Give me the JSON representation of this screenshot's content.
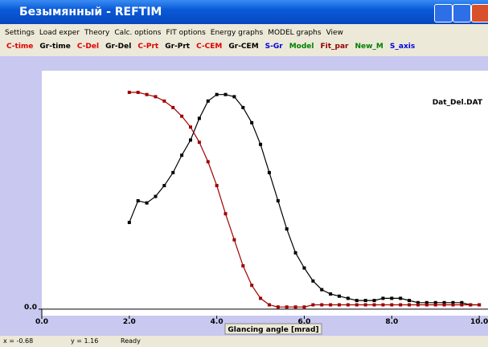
{
  "window": {
    "title": "Безымянный - REFTIM"
  },
  "menu": [
    "Settings",
    "Load exper",
    "Theory",
    "Calc. options",
    "FIT options",
    "Energy graphs",
    "MODEL graphs",
    "View"
  ],
  "toolbar": [
    {
      "label": "C-time",
      "color": "#e00000"
    },
    {
      "label": "Gr-time",
      "color": "#000000"
    },
    {
      "label": "C-Del",
      "color": "#e00000"
    },
    {
      "label": "Gr-Del",
      "color": "#000000"
    },
    {
      "label": "C-Prt",
      "color": "#e00000"
    },
    {
      "label": "Gr-Prt",
      "color": "#000000"
    },
    {
      "label": "C-CEM",
      "color": "#e00000"
    },
    {
      "label": "Gr-CEM",
      "color": "#000000"
    },
    {
      "label": "S-Gr",
      "color": "#0000e0"
    },
    {
      "label": "Model",
      "color": "#008000"
    },
    {
      "label": "Fit_par",
      "color": "#900000"
    },
    {
      "label": "New_M",
      "color": "#008000"
    },
    {
      "label": "S_axis",
      "color": "#0000e0"
    }
  ],
  "status": [
    "x = -0.68",
    "y = 1.16",
    "Ready"
  ],
  "chart_data": {
    "type": "line",
    "annotation": "Dat_Del.DAT",
    "x_label": "Glancing angle [mrad]",
    "x": [
      2.0,
      2.2,
      2.4,
      2.6,
      2.8,
      3.0,
      3.2,
      3.4,
      3.6,
      3.8,
      4.0,
      4.2,
      4.4,
      4.6,
      4.8,
      5.0,
      5.2,
      5.4,
      5.6,
      5.8,
      6.0,
      6.2,
      6.4,
      6.6,
      6.8,
      7.0,
      7.2,
      7.4,
      7.6,
      7.8,
      8.0,
      8.2,
      8.4,
      8.6,
      8.8,
      9.0,
      9.2,
      9.4,
      9.6,
      9.8,
      10.0
    ],
    "series": [
      {
        "color": "#000000",
        "values": [
          0.4,
          0.5,
          0.49,
          0.52,
          0.57,
          0.63,
          0.71,
          0.78,
          0.88,
          0.96,
          0.99,
          0.99,
          0.98,
          0.93,
          0.86,
          0.76,
          0.63,
          0.5,
          0.37,
          0.26,
          0.19,
          0.13,
          0.09,
          0.07,
          0.06,
          0.05,
          0.04,
          0.04,
          0.04,
          0.05,
          0.05,
          0.05,
          0.04,
          0.03,
          0.03,
          0.03,
          0.03,
          0.03,
          0.03,
          0.02,
          0.02
        ]
      },
      {
        "color": "#a00000",
        "values": [
          1.0,
          1.0,
          0.99,
          0.98,
          0.96,
          0.93,
          0.89,
          0.84,
          0.77,
          0.68,
          0.57,
          0.44,
          0.32,
          0.2,
          0.11,
          0.05,
          0.02,
          0.01,
          0.01,
          0.01,
          0.01,
          0.02,
          0.02,
          0.02,
          0.02,
          0.02,
          0.02,
          0.02,
          0.02,
          0.02,
          0.02,
          0.02,
          0.02,
          0.02,
          0.02,
          0.02,
          0.02,
          0.02,
          0.02,
          0.02,
          0.02
        ]
      }
    ],
    "xlim": [
      0,
      10.2
    ],
    "ylim": [
      -0.03,
      1.1
    ],
    "xticks": [
      {
        "value": 0,
        "label": "0.0"
      },
      {
        "value": 2,
        "label": "2.0"
      },
      {
        "value": 4,
        "label": "4.0"
      },
      {
        "value": 6,
        "label": "6.0"
      },
      {
        "value": 8,
        "label": "8.0"
      },
      {
        "value": 10,
        "label": "10.0"
      }
    ],
    "yticks": [
      {
        "value": 0,
        "label": "0.0"
      }
    ]
  }
}
